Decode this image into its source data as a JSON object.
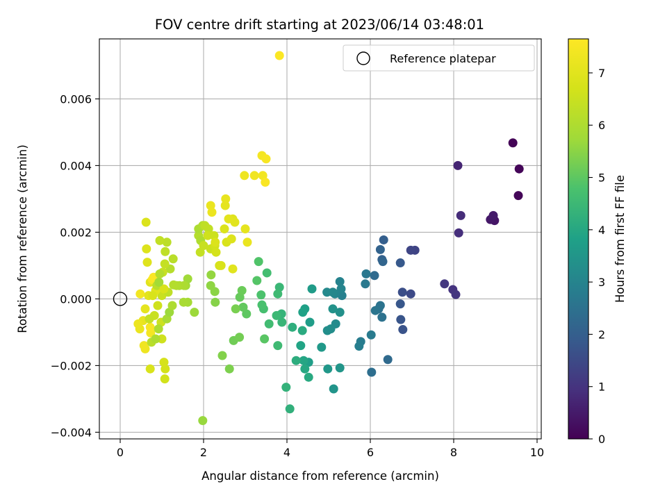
{
  "chart_data": {
    "type": "scatter",
    "title": "FOV centre drift starting at 2023/06/14 03:48:01",
    "xlabel": "Angular distance from reference (arcmin)",
    "ylabel": "Rotation from reference (arcmin)",
    "xlim": [
      -0.5,
      10.1
    ],
    "ylim": [
      -0.0042,
      0.0078
    ],
    "xticks": [
      0,
      2,
      4,
      6,
      8,
      10
    ],
    "xtick_labels": [
      "0",
      "2",
      "4",
      "6",
      "8",
      "10"
    ],
    "yticks": [
      -0.004,
      -0.002,
      0.0,
      0.002,
      0.004,
      0.006
    ],
    "ytick_labels": [
      "−0.004",
      "−0.002",
      "0.000",
      "0.002",
      "0.004",
      "0.006"
    ],
    "grid": true,
    "legend": {
      "label": "Reference platepar",
      "placement": "top-right",
      "marker": "open-circle"
    },
    "reference_point": {
      "x": 0,
      "y": 0
    },
    "colorbar": {
      "label": "Hours from first FF file",
      "min": 0,
      "max": 7.65,
      "ticks": [
        0,
        1,
        2,
        3,
        4,
        5,
        6,
        7
      ],
      "tick_labels": [
        "0",
        "1",
        "2",
        "3",
        "4",
        "5",
        "6",
        "7"
      ],
      "colormap": "viridis"
    },
    "points": [
      [
        9.42,
        0.00468,
        0.05
      ],
      [
        9.57,
        0.0039,
        0.08
      ],
      [
        9.55,
        0.0031,
        0.1
      ],
      [
        8.98,
        0.00235,
        0.4
      ],
      [
        8.88,
        0.00238,
        0.45
      ],
      [
        8.95,
        0.0025,
        0.5
      ],
      [
        8.1,
        0.004,
        0.7
      ],
      [
        8.17,
        0.0025,
        0.85
      ],
      [
        8.12,
        0.00198,
        0.9
      ],
      [
        7.98,
        0.00028,
        1.0
      ],
      [
        8.05,
        0.00013,
        1.05
      ],
      [
        7.78,
        0.00045,
        1.1
      ],
      [
        7.07,
        0.00146,
        1.35
      ],
      [
        6.97,
        0.00146,
        1.4
      ],
      [
        6.97,
        0.00015,
        1.5
      ],
      [
        6.77,
        0.0002,
        1.6
      ],
      [
        6.78,
        -0.00092,
        1.7
      ],
      [
        6.73,
        -0.00062,
        1.75
      ],
      [
        6.72,
        -0.00015,
        1.8
      ],
      [
        6.72,
        0.00108,
        1.85
      ],
      [
        6.32,
        0.00177,
        2.0
      ],
      [
        6.28,
        0.00118,
        2.05
      ],
      [
        6.24,
        0.00148,
        2.1
      ],
      [
        6.3,
        0.00112,
        2.15
      ],
      [
        6.1,
        0.0007,
        2.3
      ],
      [
        6.42,
        -0.00182,
        2.3
      ],
      [
        6.03,
        -0.0022,
        2.4
      ],
      [
        6.2,
        -0.0003,
        2.45
      ],
      [
        6.28,
        -0.00055,
        2.5
      ],
      [
        6.24,
        -0.0002,
        2.55
      ],
      [
        6.12,
        -0.00035,
        2.6
      ],
      [
        5.9,
        0.00075,
        2.65
      ],
      [
        5.88,
        0.00045,
        2.7
      ],
      [
        6.02,
        -0.00108,
        2.75
      ],
      [
        5.77,
        -0.00128,
        2.8
      ],
      [
        5.73,
        -0.00142,
        2.85
      ],
      [
        5.32,
        0.0001,
        2.9
      ],
      [
        5.27,
        0.00052,
        2.95
      ],
      [
        5.3,
        0.0003,
        3.0
      ],
      [
        5.15,
        0.00015,
        3.05
      ],
      [
        5.1,
        0.0002,
        3.1
      ],
      [
        4.96,
        0.0002,
        3.15
      ],
      [
        5.17,
        -0.00075,
        3.2
      ],
      [
        5.05,
        -0.0009,
        3.25
      ],
      [
        4.97,
        -0.00095,
        3.3
      ],
      [
        5.27,
        -0.0004,
        3.35
      ],
      [
        5.1,
        -0.0003,
        3.4
      ],
      [
        5.12,
        -0.0027,
        3.45
      ],
      [
        5.27,
        -0.00207,
        3.5
      ],
      [
        4.98,
        -0.0021,
        3.55
      ],
      [
        4.83,
        -0.00145,
        3.6
      ],
      [
        4.6,
        0.0003,
        3.65
      ],
      [
        4.55,
        -0.0007,
        3.7
      ],
      [
        4.52,
        -0.0019,
        3.75
      ],
      [
        4.43,
        -0.0003,
        3.8
      ],
      [
        4.38,
        -0.0004,
        3.85
      ],
      [
        4.33,
        -0.0014,
        3.9
      ],
      [
        4.4,
        -0.00185,
        3.95
      ],
      [
        4.43,
        -0.0021,
        4.0
      ],
      [
        4.52,
        -0.00235,
        4.05
      ],
      [
        4.37,
        -0.00095,
        4.1
      ],
      [
        4.22,
        -0.00185,
        4.15
      ],
      [
        4.13,
        -0.00085,
        4.2
      ],
      [
        4.07,
        -0.0033,
        4.25
      ],
      [
        3.98,
        -0.00265,
        4.3
      ],
      [
        3.87,
        -0.00045,
        4.35
      ],
      [
        3.88,
        -0.0007,
        4.4
      ],
      [
        3.82,
        0.00035,
        4.45
      ],
      [
        3.75,
        -0.0005,
        4.5
      ],
      [
        3.78,
        -0.0014,
        4.55
      ],
      [
        3.78,
        0.00015,
        4.55
      ],
      [
        3.57,
        -0.00075,
        4.6
      ],
      [
        3.52,
        0.00078,
        4.65
      ],
      [
        3.44,
        -0.0003,
        4.7
      ],
      [
        3.4,
        -0.00018,
        4.75
      ],
      [
        3.38,
        0.00012,
        4.8
      ],
      [
        3.32,
        0.00112,
        4.85
      ],
      [
        3.28,
        0.00055,
        4.9
      ],
      [
        3.46,
        -0.0012,
        4.95
      ],
      [
        3.03,
        -0.00045,
        5.0
      ],
      [
        2.95,
        -0.00025,
        5.05
      ],
      [
        2.87,
        5e-05,
        5.1
      ],
      [
        2.92,
        0.00025,
        5.15
      ],
      [
        2.72,
        -0.00125,
        5.2
      ],
      [
        2.86,
        -0.00115,
        5.25
      ],
      [
        2.77,
        -0.0003,
        5.3
      ],
      [
        2.62,
        -0.0021,
        5.35
      ],
      [
        2.45,
        -0.0017,
        5.4
      ],
      [
        2.28,
        -0.0001,
        5.45
      ],
      [
        2.27,
        0.00022,
        5.5
      ],
      [
        2.17,
        0.0004,
        5.55
      ],
      [
        2.18,
        0.00072,
        5.6
      ],
      [
        1.98,
        -0.00365,
        5.65
      ],
      [
        1.78,
        -0.0004,
        5.7
      ],
      [
        1.62,
        0.0006,
        5.75
      ],
      [
        1.57,
        0.0004,
        5.8
      ],
      [
        1.62,
        -0.0001,
        5.85
      ],
      [
        1.52,
        -0.0001,
        5.9
      ],
      [
        1.53,
        0.0004,
        5.95
      ],
      [
        1.42,
        0.0004,
        6.0
      ],
      [
        1.35,
        0.0004,
        6.05
      ],
      [
        1.28,
        0.00042,
        6.1
      ],
      [
        1.2,
        0.0009,
        6.15
      ],
      [
        1.27,
        0.0012,
        6.2
      ],
      [
        1.12,
        0.0017,
        6.25
      ],
      [
        1.08,
        0.00142,
        6.3
      ],
      [
        0.95,
        0.00175,
        6.35
      ],
      [
        1.07,
        0.00105,
        6.4
      ],
      [
        1.02,
        0.0008,
        6.45
      ],
      [
        1.0,
        0.0001,
        6.5
      ],
      [
        0.98,
        -0.0007,
        6.55
      ],
      [
        1.0,
        -0.0012,
        6.6
      ],
      [
        1.07,
        -0.0024,
        6.65
      ],
      [
        1.08,
        -0.0021,
        6.7
      ],
      [
        1.05,
        -0.0019,
        6.75
      ],
      [
        0.72,
        -0.0021,
        6.8
      ],
      [
        0.62,
        0.0023,
        6.85
      ],
      [
        0.63,
        0.0015,
        6.9
      ],
      [
        0.65,
        0.0011,
        6.95
      ],
      [
        0.72,
        0.0005,
        7.0
      ],
      [
        0.68,
        0.0001,
        7.05
      ],
      [
        0.6,
        -0.0003,
        7.1
      ],
      [
        0.55,
        -0.00065,
        7.15
      ],
      [
        0.47,
        -0.0009,
        7.2
      ],
      [
        0.43,
        -0.00075,
        7.25
      ],
      [
        0.6,
        -0.0015,
        7.3
      ],
      [
        0.57,
        -0.0014,
        7.35
      ],
      [
        0.48,
        0.00015,
        7.4
      ],
      [
        0.73,
        -0.00102,
        7.45
      ],
      [
        0.72,
        -0.00085,
        7.5
      ],
      [
        0.77,
        0.00058,
        7.55
      ],
      [
        0.8,
        0.00065,
        7.6
      ],
      [
        0.85,
        0.00025,
        7.0
      ],
      [
        0.9,
        -0.0002,
        6.6
      ],
      [
        0.82,
        -0.0005,
        6.5
      ],
      [
        0.88,
        0.0004,
        6.2
      ],
      [
        0.95,
        0.00075,
        6.1
      ],
      [
        0.78,
        0.0001,
        6.8
      ],
      [
        0.7,
        -0.0006,
        6.4
      ],
      [
        0.92,
        -0.0009,
        6.0
      ],
      [
        1.12,
        -0.0006,
        5.9
      ],
      [
        1.18,
        -0.0004,
        5.7
      ],
      [
        1.25,
        -0.0002,
        6.0
      ],
      [
        1.15,
        0.0002,
        6.3
      ],
      [
        1.05,
        0.0003,
        6.8
      ],
      [
        0.93,
        0.0005,
        5.8
      ],
      [
        0.75,
        -0.0013,
        6.2
      ],
      [
        0.85,
        -0.0012,
        6.0
      ],
      [
        1.88,
        0.0019,
        6.1
      ],
      [
        1.93,
        0.00175,
        6.0
      ],
      [
        1.88,
        0.0021,
        5.95
      ],
      [
        1.98,
        0.0022,
        6.05
      ],
      [
        2.03,
        0.0022,
        6.3
      ],
      [
        2.12,
        0.0021,
        6.35
      ],
      [
        1.92,
        0.0014,
        6.4
      ],
      [
        2.0,
        0.0016,
        6.45
      ],
      [
        2.17,
        0.0015,
        6.5
      ],
      [
        2.1,
        0.0019,
        6.6
      ],
      [
        2.25,
        0.0019,
        6.55
      ],
      [
        2.27,
        0.0016,
        6.65
      ],
      [
        2.3,
        0.0014,
        6.7
      ],
      [
        2.38,
        0.001,
        6.75
      ],
      [
        2.55,
        0.0017,
        6.8
      ],
      [
        2.5,
        0.0021,
        6.85
      ],
      [
        2.67,
        0.0018,
        6.9
      ],
      [
        2.7,
        0.0024,
        6.95
      ],
      [
        2.75,
        0.0023,
        7.0
      ],
      [
        2.6,
        0.0024,
        7.05
      ],
      [
        2.52,
        0.0028,
        7.1
      ],
      [
        2.53,
        0.003,
        7.15
      ],
      [
        2.17,
        0.0028,
        7.2
      ],
      [
        2.2,
        0.0026,
        7.25
      ],
      [
        2.98,
        0.0037,
        7.3
      ],
      [
        3.22,
        0.0037,
        7.35
      ],
      [
        3.42,
        0.0037,
        7.4
      ],
      [
        3.4,
        0.0043,
        7.45
      ],
      [
        3.5,
        0.0042,
        7.5
      ],
      [
        3.48,
        0.0035,
        7.55
      ],
      [
        3.82,
        0.0073,
        7.6
      ],
      [
        3.0,
        0.0021,
        7.1
      ],
      [
        3.05,
        0.0017,
        7.2
      ],
      [
        2.7,
        0.0009,
        7.0
      ],
      [
        2.42,
        0.001,
        6.8
      ],
      [
        2.28,
        0.0017,
        6.85
      ]
    ]
  }
}
